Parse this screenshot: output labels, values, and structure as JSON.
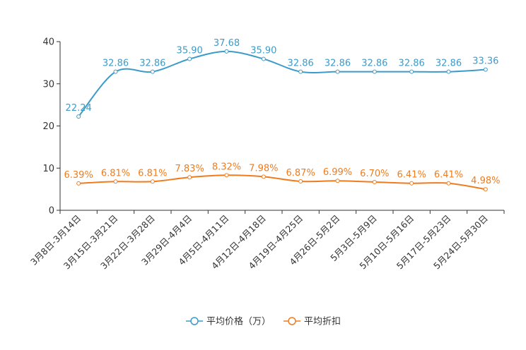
{
  "chart_data": {
    "type": "line",
    "title": "",
    "xlabel": "",
    "ylabel": "",
    "ylim": [
      0,
      40
    ],
    "yticks": [
      0,
      10,
      20,
      30,
      40
    ],
    "grid": false,
    "legend_position": "bottom-center",
    "categories": [
      "3月8日-3月14日",
      "3月15日-3月21日",
      "3月22日-3月28日",
      "3月29日-4月4日",
      "4月5日-4月11日",
      "4月12日-4月18日",
      "4月19日-4月25日",
      "4月26日-5月2日",
      "5月3日-5月9日",
      "5月10日-5月16日",
      "5月17日-5月23日",
      "5月24日-5月30日"
    ],
    "series": [
      {
        "name": "平均价格（万）",
        "color": "#3c9bc9",
        "values": [
          22.24,
          32.86,
          32.86,
          35.9,
          37.68,
          35.9,
          32.86,
          32.86,
          32.86,
          32.86,
          32.86,
          33.36
        ],
        "labels": [
          "22.24",
          "32.86",
          "32.86",
          "35.90",
          "37.68",
          "35.90",
          "32.86",
          "32.86",
          "32.86",
          "32.86",
          "32.86",
          "33.36"
        ]
      },
      {
        "name": "平均折扣",
        "color": "#f07c1e",
        "values": [
          6.39,
          6.81,
          6.81,
          7.83,
          8.32,
          7.98,
          6.87,
          6.99,
          6.7,
          6.41,
          6.41,
          4.98
        ],
        "labels": [
          "6.39%",
          "6.81%",
          "6.81%",
          "7.83%",
          "8.32%",
          "7.98%",
          "6.87%",
          "6.99%",
          "6.70%",
          "6.41%",
          "6.41%",
          "4.98%"
        ]
      }
    ]
  }
}
